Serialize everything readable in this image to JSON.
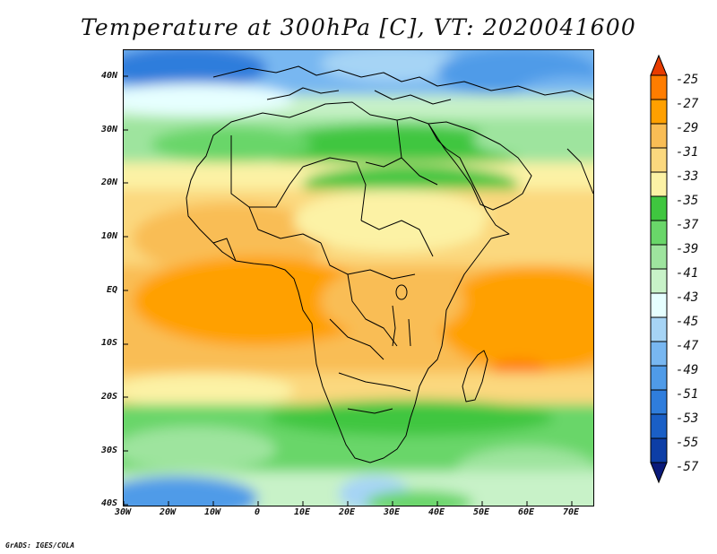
{
  "title": "Temperature at 300hPa [C], VT: 2020041600",
  "credit": "GrADS: IGES/COLA",
  "map": {
    "lon_labels": [
      "30W",
      "20W",
      "10W",
      "0",
      "10E",
      "20E",
      "30E",
      "40E",
      "50E",
      "60E",
      "70E"
    ],
    "lat_labels": [
      "40N",
      "30N",
      "20N",
      "10N",
      "EQ",
      "10S",
      "20S",
      "30S",
      "40S"
    ],
    "lon_range": [
      -30,
      75
    ],
    "lat_range": [
      -40,
      45
    ]
  },
  "colorbar": {
    "labels": [
      "-25",
      "-27",
      "-29",
      "-31",
      "-33",
      "-35",
      "-37",
      "-39",
      "-41",
      "-43",
      "-45",
      "-47",
      "-49",
      "-51",
      "-53",
      "-55",
      "-57"
    ],
    "colors": [
      "#e83c00",
      "#ff7d00",
      "#ffa000",
      "#f9bd55",
      "#fbd87e",
      "#fcf2a5",
      "#3fc63f",
      "#69d669",
      "#9ee49e",
      "#c8f2c8",
      "#e6ffff",
      "#a6d4f5",
      "#78b7f1",
      "#4f9be8",
      "#2f7ddc",
      "#1a5fc6",
      "#0d3ea6",
      "#0a1a7a"
    ]
  }
}
